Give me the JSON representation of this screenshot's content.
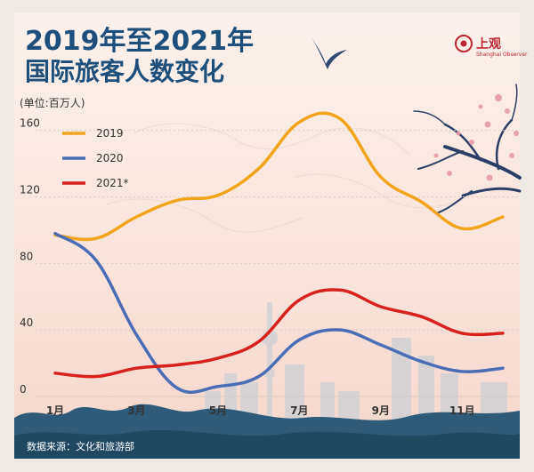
{
  "title_line1": "2019年至2021年",
  "title_line2": "国际旅客人数变化",
  "source": "数据来源：文化和旅游部",
  "logo": {
    "name": "上观",
    "subtitle": "Shanghai Observer"
  },
  "colors": {
    "2019": "#f2a51c",
    "2020": "#4a6db3",
    "2021": "#d8201c",
    "title": "#1e4f7a"
  },
  "chart_data": {
    "type": "line",
    "ylabel": "(单位:百万人)",
    "ylim": [
      0,
      170
    ],
    "yticks": [
      0,
      40,
      80,
      120,
      160
    ],
    "x": [
      1,
      2,
      3,
      4,
      5,
      6,
      7,
      8,
      9,
      10,
      11,
      12
    ],
    "xtick_labels": [
      "1月",
      "3月",
      "5月",
      "7月",
      "9月",
      "11月"
    ],
    "xtick_positions": [
      1,
      3,
      5,
      7,
      9,
      11
    ],
    "series": [
      {
        "name": "2019",
        "values": [
          97,
          95,
          108,
          118,
          121,
          137,
          165,
          167,
          132,
          117,
          101,
          108
        ]
      },
      {
        "name": "2020",
        "values": [
          98,
          82,
          37,
          5,
          6,
          12,
          34,
          40,
          31,
          21,
          15,
          17
        ]
      },
      {
        "name": "2021*",
        "values": [
          14,
          12,
          17,
          19,
          23,
          33,
          58,
          64,
          54,
          48,
          38,
          38
        ]
      }
    ],
    "legend_position": "top-left"
  }
}
